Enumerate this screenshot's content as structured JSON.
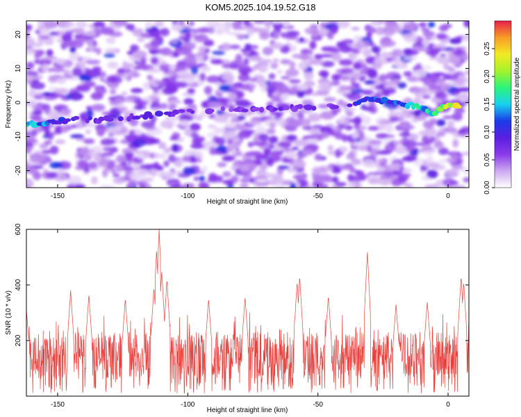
{
  "title": "KOM5.2025.104.19.52.G18",
  "chart_data": [
    {
      "type": "heatmap",
      "xlabel": "Height of straight line (km)",
      "ylabel": "Frequency (Hz)",
      "xlim": [
        -162,
        8
      ],
      "ylim": [
        -25,
        24
      ],
      "xticks": [
        -150,
        -100,
        -50,
        0
      ],
      "yticks": [
        -20,
        -10,
        0,
        10,
        20
      ],
      "colorbar": {
        "label": "Normalized spectral amplitude",
        "range": [
          0,
          0.3
        ],
        "ticks": [
          0.0,
          0.05,
          0.1,
          0.15,
          0.2,
          0.25
        ],
        "tick_labels": [
          "0.00",
          "0.05",
          "0.10",
          "0.15",
          "0.20",
          "0.25"
        ],
        "colormap": [
          "#ffffff",
          "#cda8f0",
          "#8a3bea",
          "#5a1ee0",
          "#1a3ce8",
          "#19d2ef",
          "#2cf47a",
          "#a6f22a",
          "#f2ea25",
          "#f89c26",
          "#e8204a"
        ]
      },
      "background_level": 0.045,
      "signal_track": [
        {
          "x": -162,
          "freq": -6.5,
          "amp": 0.16
        },
        {
          "x": -155,
          "freq": -6.0,
          "amp": 0.14
        },
        {
          "x": -145,
          "freq": -5.0,
          "amp": 0.1
        },
        {
          "x": -130,
          "freq": -5.0,
          "amp": 0.08
        },
        {
          "x": -110,
          "freq": -3.5,
          "amp": 0.09
        },
        {
          "x": -95,
          "freq": -2.5,
          "amp": 0.07
        },
        {
          "x": -60,
          "freq": -1.5,
          "amp": 0.08
        },
        {
          "x": -40,
          "freq": -1.0,
          "amp": 0.07
        },
        {
          "x": -30,
          "freq": 1.0,
          "amp": 0.14
        },
        {
          "x": -20,
          "freq": 0.0,
          "amp": 0.13
        },
        {
          "x": -10,
          "freq": -1.5,
          "amp": 0.17
        },
        {
          "x": -6,
          "freq": -3.5,
          "amp": 0.19
        },
        {
          "x": -3,
          "freq": -1.5,
          "amp": 0.22
        },
        {
          "x": 0,
          "freq": -0.5,
          "amp": 0.25
        },
        {
          "x": 5,
          "freq": -1.0,
          "amp": 0.28
        }
      ]
    },
    {
      "type": "line",
      "xlabel": "Height of straight line (km)",
      "ylabel": "SNR (10 * v/v)",
      "xlim": [
        -162,
        8
      ],
      "ylim": [
        0,
        600
      ],
      "xticks": [
        -150,
        -100,
        -50,
        0
      ],
      "yticks": [
        200,
        400,
        600
      ],
      "grid": false,
      "color": "#e8403c",
      "baseline": [
        60,
        230
      ],
      "peaks": [
        {
          "x": -162,
          "y": 310
        },
        {
          "x": -145,
          "y": 380
        },
        {
          "x": -138,
          "y": 365
        },
        {
          "x": -124,
          "y": 350
        },
        {
          "x": -113,
          "y": 390
        },
        {
          "x": -112,
          "y": 525
        },
        {
          "x": -111,
          "y": 600
        },
        {
          "x": -110,
          "y": 450
        },
        {
          "x": -108,
          "y": 420
        },
        {
          "x": -92,
          "y": 350
        },
        {
          "x": -78,
          "y": 355
        },
        {
          "x": -58,
          "y": 410
        },
        {
          "x": -57,
          "y": 430
        },
        {
          "x": -46,
          "y": 360
        },
        {
          "x": -31,
          "y": 520
        },
        {
          "x": -20,
          "y": 330
        },
        {
          "x": -8,
          "y": 340
        },
        {
          "x": 5,
          "y": 430
        },
        {
          "x": 6,
          "y": 410
        }
      ]
    }
  ]
}
